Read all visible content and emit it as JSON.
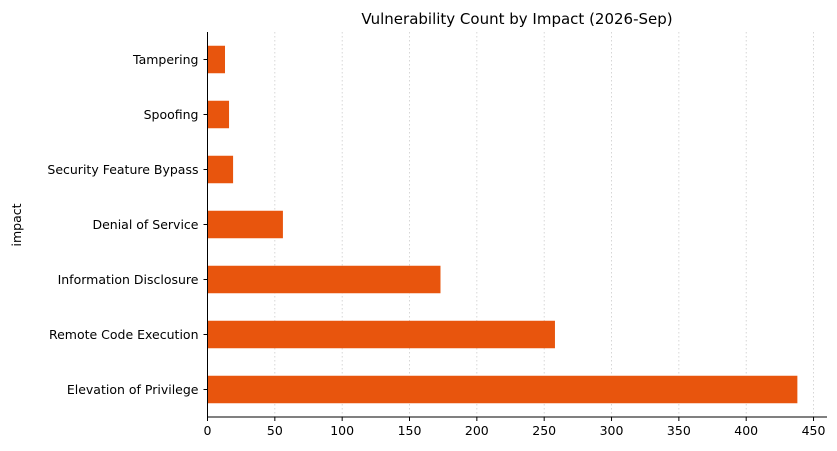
{
  "chart_data": {
    "type": "bar",
    "orientation": "horizontal",
    "title": "Vulnerability Count by Impact (2026-Sep)",
    "xlabel": "",
    "ylabel": "impact",
    "categories": [
      "Elevation of Privilege",
      "Remote Code Execution",
      "Information Disclosure",
      "Denial of Service",
      "Security Feature Bypass",
      "Spoofing",
      "Tampering"
    ],
    "values": [
      438,
      258,
      173,
      56,
      19,
      16,
      13
    ],
    "xlim": [
      0,
      460
    ],
    "xticks": [
      0,
      50,
      100,
      150,
      200,
      250,
      300,
      350,
      400,
      450
    ],
    "grid": "vertical dotted",
    "bar_color": "#e8550d",
    "grid_color": "#cccccc",
    "axis_color": "#000000"
  }
}
